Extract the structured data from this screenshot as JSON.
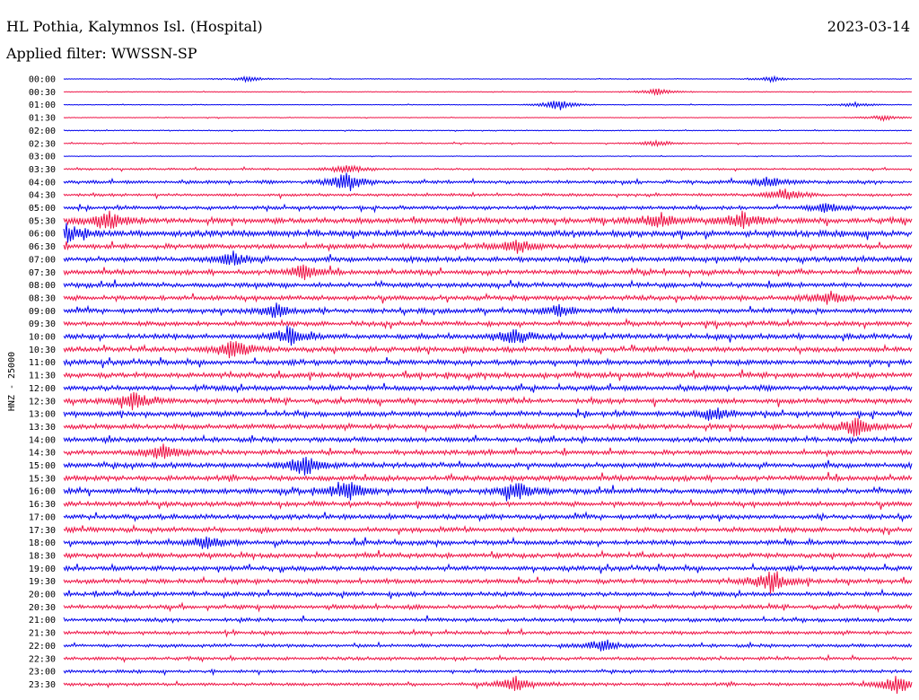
{
  "header": {
    "station": "HL Pothia, Kalymnos Isl. (Hospital)",
    "date": "2023-03-14",
    "filter": "Applied filter: WWSSN-SP"
  },
  "chart_data": {
    "type": "line",
    "title": "",
    "xlabel": "",
    "ylabel": "HNZ - 25000",
    "colors": [
      "#0000ee",
      "#ee1144"
    ],
    "grid": false,
    "rows": [
      "00:00",
      "00:30",
      "01:00",
      "01:30",
      "02:00",
      "02:30",
      "03:00",
      "03:30",
      "04:00",
      "04:30",
      "05:00",
      "05:30",
      "06:00",
      "06:30",
      "07:00",
      "07:30",
      "08:00",
      "08:30",
      "09:00",
      "09:30",
      "10:00",
      "10:30",
      "11:00",
      "11:30",
      "12:00",
      "12:30",
      "13:00",
      "13:30",
      "14:00",
      "14:30",
      "15:00",
      "15:30",
      "16:00",
      "16:30",
      "17:00",
      "17:30",
      "18:00",
      "18:30",
      "19:00",
      "19:30",
      "20:00",
      "20:30",
      "21:00",
      "21:30",
      "22:00",
      "22:30",
      "23:00",
      "23:30"
    ],
    "noise_level": [
      0.3,
      0.3,
      0.3,
      0.3,
      0.4,
      0.5,
      0.3,
      0.8,
      1.4,
      1.2,
      1.6,
      2.4,
      2.6,
      2.2,
      2.2,
      2.0,
      2.0,
      2.0,
      2.0,
      2.0,
      2.2,
      2.2,
      2.2,
      2.2,
      2.2,
      2.2,
      2.2,
      2.2,
      2.0,
      2.0,
      2.2,
      2.2,
      2.2,
      2.0,
      2.0,
      2.0,
      2.0,
      2.0,
      2.0,
      2.0,
      1.8,
      1.8,
      1.6,
      1.5,
      1.4,
      1.4,
      1.3,
      1.4
    ],
    "events": [
      {
        "row": "00:00",
        "minute": 6.5,
        "amp": 3
      },
      {
        "row": "00:00",
        "minute": 25,
        "amp": 3
      },
      {
        "row": "00:30",
        "minute": 21,
        "amp": 4
      },
      {
        "row": "01:00",
        "minute": 17.5,
        "amp": 6
      },
      {
        "row": "01:00",
        "minute": 28,
        "amp": 3
      },
      {
        "row": "01:30",
        "minute": 29,
        "amp": 3
      },
      {
        "row": "02:30",
        "minute": 21,
        "amp": 3
      },
      {
        "row": "03:30",
        "minute": 10,
        "amp": 5
      },
      {
        "row": "04:00",
        "minute": 10,
        "amp": 12
      },
      {
        "row": "04:00",
        "minute": 25,
        "amp": 6
      },
      {
        "row": "04:30",
        "minute": 25.5,
        "amp": 7
      },
      {
        "row": "05:00",
        "minute": 27,
        "amp": 6
      },
      {
        "row": "05:30",
        "minute": 1.5,
        "amp": 11
      },
      {
        "row": "05:30",
        "minute": 21,
        "amp": 9
      },
      {
        "row": "05:30",
        "minute": 24,
        "amp": 9
      },
      {
        "row": "06:00",
        "minute": 0.1,
        "amp": 11
      },
      {
        "row": "06:30",
        "minute": 16,
        "amp": 7
      },
      {
        "row": "07:00",
        "minute": 6,
        "amp": 7
      },
      {
        "row": "07:30",
        "minute": 8.5,
        "amp": 8
      },
      {
        "row": "08:30",
        "minute": 27,
        "amp": 6
      },
      {
        "row": "09:00",
        "minute": 7.5,
        "amp": 8
      },
      {
        "row": "09:00",
        "minute": 17.5,
        "amp": 6
      },
      {
        "row": "10:00",
        "minute": 8,
        "amp": 9
      },
      {
        "row": "10:00",
        "minute": 16,
        "amp": 8
      },
      {
        "row": "10:30",
        "minute": 6,
        "amp": 10
      },
      {
        "row": "12:30",
        "minute": 2.5,
        "amp": 10
      },
      {
        "row": "13:00",
        "minute": 23,
        "amp": 7
      },
      {
        "row": "13:30",
        "minute": 28,
        "amp": 10
      },
      {
        "row": "14:30",
        "minute": 3.5,
        "amp": 9
      },
      {
        "row": "15:00",
        "minute": 8.5,
        "amp": 11
      },
      {
        "row": "16:00",
        "minute": 10,
        "amp": 11
      },
      {
        "row": "16:00",
        "minute": 16,
        "amp": 11
      },
      {
        "row": "18:00",
        "minute": 5,
        "amp": 8
      },
      {
        "row": "19:30",
        "minute": 25,
        "amp": 12
      },
      {
        "row": "22:00",
        "minute": 19,
        "amp": 6
      },
      {
        "row": "23:30",
        "minute": 16,
        "amp": 9
      },
      {
        "row": "23:30",
        "minute": 29.5,
        "amp": 10
      }
    ]
  }
}
